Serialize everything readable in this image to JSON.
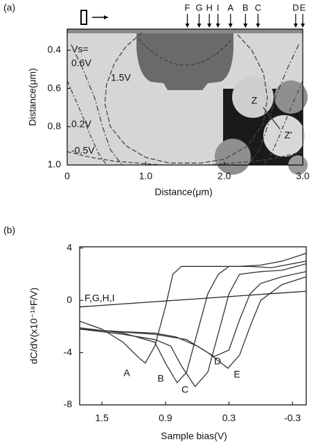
{
  "chart_data": [
    {
      "type": "contour",
      "title": "(a)",
      "x_label": "Distance(μm)",
      "y_label": "Distance(μm)",
      "annotations": [
        "Vs=",
        "Z",
        "Z'"
      ],
      "xlim": [
        0,
        3.0
      ],
      "ylim": [
        1.0,
        0.29
      ],
      "xticks": [
        0,
        {
          "value": 1,
          "label": "1.0"
        },
        {
          "value": 2,
          "label": "2.0"
        },
        {
          "value": 3,
          "label": "3.0"
        }
      ],
      "yticks": [
        0.4,
        0.6,
        0.8,
        {
          "value": 1,
          "label": "1.0"
        }
      ],
      "markers": {
        "labels": [
          "F",
          "G",
          "H",
          "I",
          "A",
          "B",
          "C",
          "D",
          "E"
        ],
        "x": [
          1.53,
          1.68,
          1.81,
          1.92,
          2.08,
          2.27,
          2.43,
          2.91,
          3.0
        ]
      },
      "series": [
        {
          "name": "0.6V",
          "color": "#444444",
          "x": [
            0.05,
            0.2,
            0.35,
            0.45,
            0.55,
            0.7,
            null,
            2.95,
            2.8,
            2.65,
            2.55,
            2.45,
            2.3
          ],
          "values": [
            0.37,
            0.5,
            0.65,
            0.8,
            0.92,
            1.0,
            null,
            0.37,
            0.5,
            0.65,
            0.8,
            0.92,
            1.0
          ]
        },
        {
          "name": "1.5V",
          "color": "#444444",
          "x": [
            0.95,
            0.75,
            0.6,
            0.5,
            0.48,
            0.55,
            0.75,
            1.0,
            1.3,
            1.5,
            1.7,
            2.0,
            2.3,
            2.5,
            2.55,
            2.5,
            2.35,
            2.15
          ],
          "values": [
            0.31,
            0.38,
            0.47,
            0.58,
            0.68,
            0.8,
            0.9,
            0.96,
            0.99,
            0.99,
            0.99,
            0.97,
            0.9,
            0.78,
            0.65,
            0.52,
            0.4,
            0.31
          ]
        },
        {
          "name": "0.2V",
          "color": "#444444",
          "x": [
            0,
            0.15,
            0.3,
            0.4,
            0.5,
            null,
            3.0,
            2.85,
            2.7,
            2.6,
            2.5
          ],
          "values": [
            0.56,
            0.7,
            0.85,
            0.94,
            1.0,
            null,
            0.56,
            0.7,
            0.85,
            0.94,
            1.0
          ]
        },
        {
          "name": "-0.5V",
          "color": "#444444",
          "x": [
            0,
            0.3,
            0.6,
            0.9,
            1.2,
            null,
            3.0,
            2.7,
            2.4,
            2.1,
            1.8
          ],
          "values": [
            0.93,
            0.96,
            0.98,
            0.99,
            1.0,
            null,
            0.93,
            0.96,
            0.98,
            0.99,
            1.0
          ]
        }
      ]
    },
    {
      "type": "line",
      "title": "(b)",
      "x_label": "Sample bias(V)",
      "y_label": "dC/dV(x10⁻¹⁸F/V)",
      "xlim": [
        1.71,
        -0.43
      ],
      "ylim": [
        -8,
        4.1
      ],
      "xticks": [
        1.5,
        0.9,
        0.3,
        -0.3
      ],
      "yticks": [
        4,
        0,
        -4,
        -8
      ],
      "series": [
        {
          "name": "A",
          "color": "#333333",
          "x": [
            1.71,
            1.5,
            1.3,
            1.15,
            1.09,
            1.0,
            0.9,
            0.83,
            0.75,
            0.5,
            0.2,
            0,
            -0.2,
            -0.43
          ],
          "values": [
            -1.6,
            -2.2,
            -3.2,
            -4.4,
            -4.8,
            -3.5,
            -0.5,
            2.0,
            2.6,
            2.6,
            2.6,
            2.7,
            3.0,
            3.6
          ]
        },
        {
          "name": "B",
          "color": "#333333",
          "x": [
            1.71,
            1.3,
            1.0,
            0.9,
            0.79,
            0.7,
            0.6,
            0.5,
            0.4,
            0.3,
            0.1,
            -0.1,
            -0.43
          ],
          "values": [
            -2.1,
            -2.5,
            -3.2,
            -4.8,
            -6.3,
            -5.5,
            -2.5,
            0.5,
            2.0,
            2.6,
            2.6,
            2.5,
            3.0
          ]
        },
        {
          "name": "C",
          "color": "#333333",
          "x": [
            1.71,
            1.3,
            1.0,
            0.85,
            0.75,
            0.62,
            0.5,
            0.4,
            0.3,
            0.2,
            0,
            -0.2,
            -0.43
          ],
          "values": [
            -2.2,
            -2.6,
            -3.0,
            -3.5,
            -5.0,
            -6.6,
            -5.5,
            -2.5,
            0.5,
            2.0,
            2.2,
            2.3,
            2.8
          ]
        },
        {
          "name": "D",
          "color": "#333333",
          "x": [
            1.71,
            1.3,
            1.0,
            0.8,
            0.6,
            0.44,
            0.3,
            0.2,
            0.1,
            0,
            -0.2,
            -0.43
          ],
          "values": [
            -2.2,
            -2.4,
            -2.5,
            -2.8,
            -3.5,
            -4.3,
            -3.8,
            -1.5,
            0.5,
            1.3,
            1.8,
            2.2
          ]
        },
        {
          "name": "E",
          "color": "#333333",
          "x": [
            1.71,
            1.0,
            0.7,
            0.5,
            0.31,
            0.2,
            0.1,
            0,
            -0.2,
            -0.43
          ],
          "values": [
            -2.2,
            -2.6,
            -3.0,
            -4.0,
            -5.2,
            -4.2,
            -2.0,
            0.0,
            1.2,
            1.8
          ]
        },
        {
          "name": "F,G,H,I",
          "color": "#222222",
          "x": [
            1.71,
            -0.43
          ],
          "values": [
            -0.5,
            0.7
          ]
        }
      ]
    }
  ]
}
